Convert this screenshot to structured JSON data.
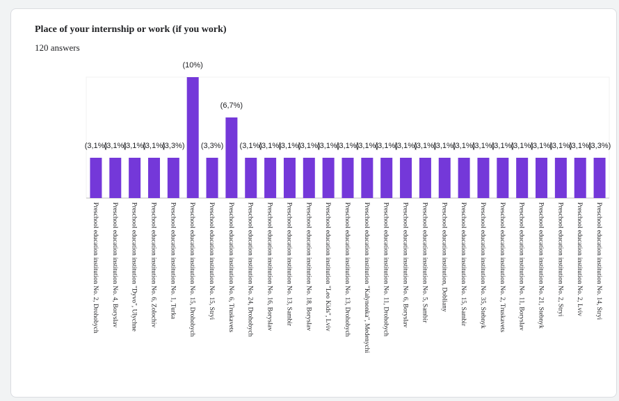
{
  "question": {
    "title": "Place of your internship or work (if you work)",
    "responses": "120 answers"
  },
  "chart_data": {
    "type": "bar",
    "title": "Place of your internship or work (if you work)",
    "xlabel": "",
    "ylabel": "",
    "bar_color": "#7438d9",
    "categories": [
      "Preschool education institution No. 2, Drohobych",
      "Preschool education institution No. 4, Boryslav",
      "Preschool education institution \"Dyvo\", Ulychne",
      "Preschool education institution No. 6, Zolochiv",
      "Preschool education institution No. 1, Turka",
      "Preschool education institution No. 15, Drohobych",
      "Preschool education institution No. 15, Stryi",
      "Preschool education institution No. 6, Truskavets",
      "Preschool education institution No. 24, Drohobych",
      "Preschool education institution No. 16, Boryslav",
      "Preschool education institution No. 13, Sambir",
      "Preschool education institution No. 18, Boryslav",
      "Preschool education institution \"Leo Kids\", Lviv",
      "Preschool education institution No. 13, Drohobych",
      "Preschool education institution \"Kalynonka\", Medenychi",
      "Preschool education institution No. 11, Drohobych",
      "Preschool education institution No. 6, Boryslav",
      "Preschool education institution No. 5, Sambir",
      "Preschool education institution, Dobliany",
      "Preschool education institution No. 15, Sambir",
      "Preschool education institution No. 35, Stebnyk",
      "Preschool education institution No. 2, Truskavets",
      "Preschool education institution No. 11, Boryslav",
      "Preschool education institution No. 21, Stebnyk",
      "Preschool education institution No. 2, Stryi",
      "Preschool education institution No. 2, Lviv",
      "Preschool education institution No. 14, Stryi"
    ],
    "values": [
      4,
      4,
      4,
      4,
      4,
      12,
      4,
      8,
      4,
      4,
      4,
      4,
      4,
      4,
      4,
      4,
      4,
      4,
      4,
      4,
      4,
      4,
      4,
      4,
      4,
      4,
      4
    ],
    "labels": [
      "(3,1%)",
      "(3,1%)",
      "(3,1%)",
      "(3,1%)",
      "(3,3%)",
      "(10%)",
      "(3,3%)",
      "(6,7%)",
      "(3,1%)",
      "(3,1%)",
      "(3,1%)",
      "(3,1%)",
      "(3,1%)",
      "(3,1%)",
      "(3,1%)",
      "(3,1%)",
      "(3,1%)",
      "(3,1%)",
      "(3,1%)",
      "(3,1%)",
      "(3,1%)",
      "(3,1%)",
      "(3,1%)",
      "(3,1%)",
      "(3,1%)",
      "(3,1%)",
      "(3,3%)"
    ],
    "ylim": [
      0,
      12
    ],
    "grid": true
  }
}
